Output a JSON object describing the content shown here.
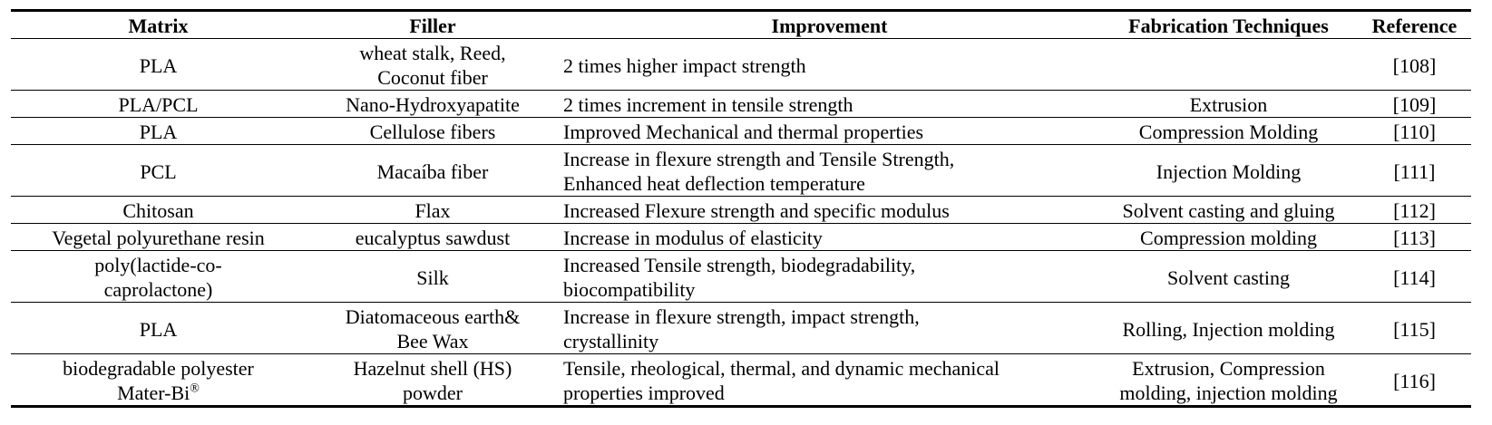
{
  "headers": {
    "matrix": "Matrix",
    "filler": "Filler",
    "improvement": "Improvement",
    "fabrication": "Fabrication Techniques",
    "reference": "Reference"
  },
  "rows": [
    {
      "matrix": [
        "PLA"
      ],
      "filler": [
        "wheat stalk, Reed,",
        "Coconut fiber"
      ],
      "improvement": [
        "2 times higher impact strength"
      ],
      "fabrication": [
        ""
      ],
      "reference": "[108]"
    },
    {
      "matrix": [
        "PLA/PCL"
      ],
      "filler": [
        "Nano-Hydroxyapatite"
      ],
      "improvement": [
        "2 times increment in tensile strength"
      ],
      "fabrication": [
        "Extrusion"
      ],
      "reference": "[109]"
    },
    {
      "matrix": [
        "PLA"
      ],
      "filler": [
        "Cellulose fibers"
      ],
      "improvement": [
        "Improved Mechanical and thermal properties"
      ],
      "fabrication": [
        "Compression Molding"
      ],
      "reference": "[110]"
    },
    {
      "matrix": [
        "PCL"
      ],
      "filler": [
        "Macaíba fiber"
      ],
      "improvement": [
        "Increase in flexure strength and Tensile Strength,",
        "Enhanced heat deflection temperature"
      ],
      "fabrication": [
        "Injection Molding"
      ],
      "reference": "[111]"
    },
    {
      "matrix": [
        "Chitosan"
      ],
      "filler": [
        "Flax"
      ],
      "improvement": [
        "Increased Flexure strength and specific modulus"
      ],
      "fabrication": [
        "Solvent casting and gluing"
      ],
      "reference": "[112]"
    },
    {
      "matrix": [
        "Vegetal polyurethane resin"
      ],
      "filler": [
        "eucalyptus sawdust"
      ],
      "improvement": [
        "Increase in modulus of elasticity"
      ],
      "fabrication": [
        "Compression molding"
      ],
      "reference": "[113]"
    },
    {
      "matrix": [
        "poly(lactide-co-",
        "caprolactone)"
      ],
      "filler": [
        "Silk"
      ],
      "improvement": [
        "Increased Tensile strength, biodegradability,",
        "biocompatibility"
      ],
      "fabrication": [
        "Solvent casting"
      ],
      "reference": "[114]"
    },
    {
      "matrix": [
        "PLA"
      ],
      "filler": [
        "Diatomaceous earth&",
        "Bee Wax"
      ],
      "improvement": [
        "Increase in flexure strength, impact strength,",
        "crystallinity"
      ],
      "fabrication": [
        "Rolling, Injection molding"
      ],
      "reference": "[115]"
    },
    {
      "matrix": [
        "biodegradable polyester",
        "Mater-Bi",
        "®"
      ],
      "filler": [
        "Hazelnut shell (HS)",
        "powder"
      ],
      "improvement": [
        "Tensile, rheological, thermal, and dynamic mechanical",
        "properties improved"
      ],
      "fabrication": [
        "Extrusion, Compression",
        "molding, injection molding"
      ],
      "reference": "[116]"
    }
  ]
}
